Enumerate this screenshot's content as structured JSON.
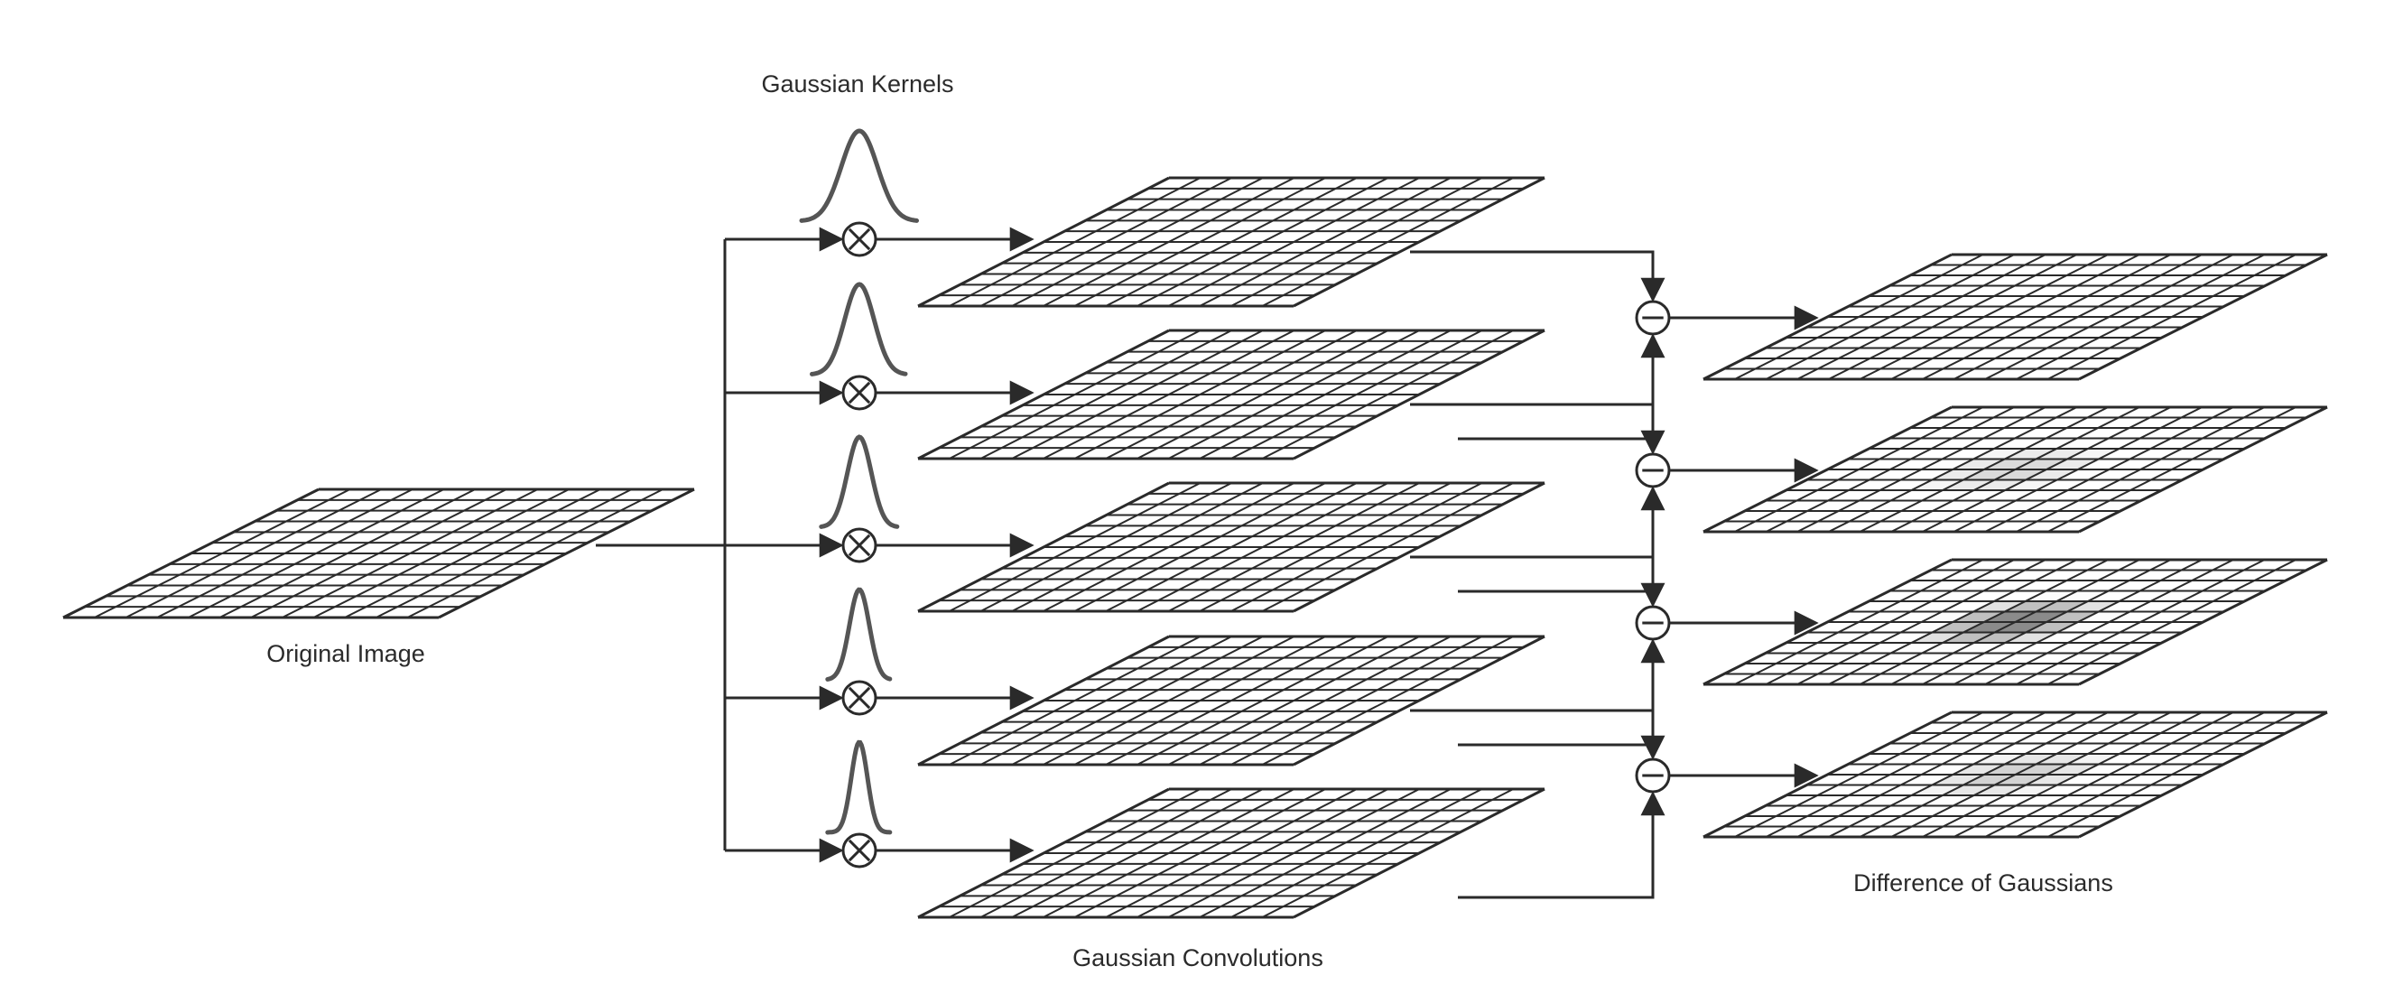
{
  "labels": {
    "original": "Original Image",
    "kernels": "Gaussian Kernels",
    "convolutions": "Gaussian Convolutions",
    "dog": "Difference of Gaussians"
  },
  "grid": {
    "cells": 12
  },
  "kernels": [
    {
      "sigma_scale": 1.0
    },
    {
      "sigma_scale": 0.82
    },
    {
      "sigma_scale": 0.66
    },
    {
      "sigma_scale": 0.55
    },
    {
      "sigma_scale": 0.45
    }
  ],
  "operators": {
    "convolve": "⊗",
    "subtract": "⊖"
  },
  "dog_blobs": [
    {
      "intensity": 0.0
    },
    {
      "intensity": 0.25
    },
    {
      "intensity": 0.8
    },
    {
      "intensity": 0.3
    }
  ],
  "colors": {
    "line": "#2a2a2a",
    "curve": "#555555",
    "blob_light": "#bbbbbb",
    "blob_dark": "#333333"
  }
}
